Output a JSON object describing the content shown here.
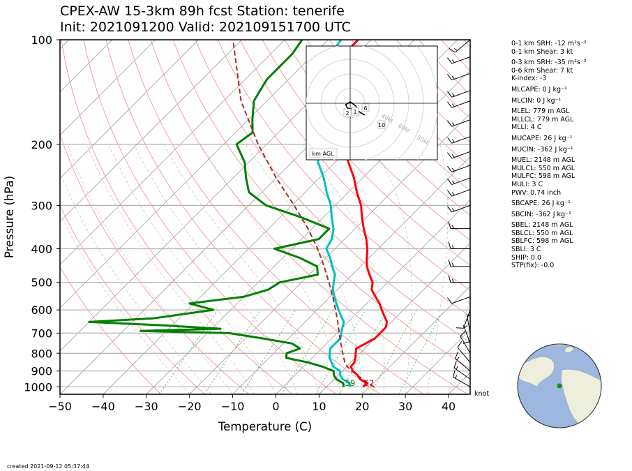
{
  "title_line1": "CPEX-AW 15-3km  89h fcst  Station: tenerife",
  "title_line2": "Init: 2021091200  Valid: 202109151700 UTC",
  "created": "created 2021-09-12 05:37:44",
  "wind_unit": "knot",
  "hodograph_label": "km AGL",
  "indices": [
    "0-1 km SRH: -12 m²s⁻²",
    "0-1 km Shear: 3 kt",
    "0-3 km SRH: -35 m²s⁻²",
    "0-6 km Shear: 7 kt",
    "K-index: -3",
    "MLCAPE: 0 J kg⁻¹",
    "MLCIN: 0 J kg⁻¹",
    "MLEL: 779 m AGL",
    "MLLCL: 779 m AGL",
    "MLLI: 4 C",
    "MUCAPE: 26 J kg⁻¹",
    "MUCIN: -362 J kg⁻¹",
    "MUEL: 2148 m AGL",
    "MULCL: 550 m AGL",
    "MULFC: 598 m AGL",
    "MULI: 3 C",
    "PWV: 0.74 inch",
    "SBCAPE: 26 J kg⁻¹",
    "SBCIN: -362 J kg⁻¹",
    "SBEL: 2148 m AGL",
    "SBLCL: 550 m AGL",
    "SBLFC: 598 m AGL",
    "SBLI: 3 C",
    "SHIP: 0.0",
    "STP(fix): -0.0"
  ],
  "colors": {
    "temperature": "#ff0000",
    "dewpoint": "#008000",
    "wetbulb": "#00c0c0",
    "parcel": "#a52a2a",
    "isobar": "#b0b0b0",
    "isotherm": "#b0b0b0",
    "dry_adiabat": "#f4a0a0",
    "moist_adiabat": "#c8c8c8",
    "mixing_ratio": "#66bb66",
    "ocean": "#9db8e0",
    "land": "#eeeedc"
  },
  "chart_data": {
    "type": "line",
    "subtype": "skew-T log-p",
    "xlabel": "Temperature (C)",
    "ylabel": "Pressure (hPa)",
    "xlim": [
      -50,
      45
    ],
    "ylim": [
      1050,
      100
    ],
    "yscale": "log",
    "xticks": [
      -50,
      -40,
      -30,
      -20,
      -10,
      0,
      10,
      20,
      30,
      40
    ],
    "yticks": [
      100,
      200,
      300,
      400,
      500,
      600,
      700,
      800,
      900,
      1000
    ],
    "surface_labels": {
      "temperature": "67",
      "dewpoint": "59"
    },
    "series": [
      {
        "key": "temperature",
        "points": [
          [
            1000,
            18.5
          ],
          [
            975,
            18.5
          ],
          [
            950,
            16
          ],
          [
            925,
            14.5
          ],
          [
            900,
            12.5
          ],
          [
            875,
            11
          ],
          [
            850,
            10.8
          ],
          [
            825,
            10
          ],
          [
            800,
            9
          ],
          [
            775,
            8
          ],
          [
            750,
            9
          ],
          [
            725,
            10
          ],
          [
            700,
            10
          ],
          [
            675,
            10
          ],
          [
            650,
            9
          ],
          [
            625,
            7
          ],
          [
            600,
            5
          ],
          [
            575,
            3
          ],
          [
            550,
            0.5
          ],
          [
            525,
            -2
          ],
          [
            500,
            -3.5
          ],
          [
            475,
            -6
          ],
          [
            450,
            -8.5
          ],
          [
            425,
            -10.5
          ],
          [
            400,
            -12.5
          ],
          [
            375,
            -15
          ],
          [
            350,
            -18
          ],
          [
            325,
            -21
          ],
          [
            300,
            -24
          ],
          [
            275,
            -28
          ],
          [
            250,
            -32
          ],
          [
            225,
            -37
          ],
          [
            200,
            -42
          ],
          [
            180,
            -47
          ],
          [
            160,
            -52
          ],
          [
            140,
            -56
          ],
          [
            120,
            -61
          ],
          [
            110,
            -63
          ],
          [
            100,
            -63
          ]
        ]
      },
      {
        "key": "dewpoint",
        "points": [
          [
            1000,
            14
          ],
          [
            975,
            13
          ],
          [
            950,
            10.5
          ],
          [
            925,
            9
          ],
          [
            900,
            8
          ],
          [
            875,
            4.5
          ],
          [
            850,
            0
          ],
          [
            825,
            -6
          ],
          [
            800,
            -7
          ],
          [
            775,
            -5
          ],
          [
            750,
            -8
          ],
          [
            725,
            -16
          ],
          [
            700,
            -25
          ],
          [
            690,
            -46
          ],
          [
            680,
            -28
          ],
          [
            665,
            -42
          ],
          [
            650,
            -60
          ],
          [
            635,
            -46
          ],
          [
            600,
            -34
          ],
          [
            575,
            -41
          ],
          [
            550,
            -30
          ],
          [
            525,
            -26
          ],
          [
            500,
            -25
          ],
          [
            475,
            -18
          ],
          [
            450,
            -20
          ],
          [
            425,
            -26
          ],
          [
            400,
            -34
          ],
          [
            375,
            -26
          ],
          [
            350,
            -26
          ],
          [
            325,
            -35
          ],
          [
            300,
            -46
          ],
          [
            275,
            -53
          ],
          [
            250,
            -57
          ],
          [
            225,
            -61
          ],
          [
            200,
            -67
          ],
          [
            185,
            -66
          ],
          [
            170,
            -69
          ],
          [
            150,
            -73
          ],
          [
            130,
            -75
          ],
          [
            110,
            -75
          ],
          [
            100,
            -76
          ]
        ]
      },
      {
        "key": "wetbulb",
        "points": [
          [
            1000,
            15.5
          ],
          [
            975,
            14.5
          ],
          [
            950,
            12
          ],
          [
            925,
            10.5
          ],
          [
            900,
            9.5
          ],
          [
            875,
            7
          ],
          [
            850,
            5.5
          ],
          [
            825,
            4
          ],
          [
            800,
            3
          ],
          [
            775,
            2
          ],
          [
            750,
            2
          ],
          [
            725,
            2
          ],
          [
            700,
            1
          ],
          [
            675,
            0
          ],
          [
            650,
            -1
          ],
          [
            625,
            -3
          ],
          [
            600,
            -5
          ],
          [
            575,
            -7
          ],
          [
            550,
            -9
          ],
          [
            525,
            -11
          ],
          [
            500,
            -12.5
          ],
          [
            475,
            -14
          ],
          [
            450,
            -16.5
          ],
          [
            425,
            -19
          ],
          [
            400,
            -22
          ],
          [
            375,
            -23
          ],
          [
            350,
            -25
          ],
          [
            325,
            -28
          ],
          [
            300,
            -31
          ],
          [
            275,
            -35
          ],
          [
            250,
            -39
          ],
          [
            225,
            -44
          ],
          [
            200,
            -48
          ],
          [
            180,
            -52
          ],
          [
            160,
            -56
          ],
          [
            140,
            -60
          ],
          [
            120,
            -65
          ],
          [
            100,
            -67
          ]
        ]
      },
      {
        "key": "parcel",
        "dashed": true,
        "points": [
          [
            1000,
            21
          ],
          [
            950,
            16.6
          ],
          [
            925,
            14.4
          ],
          [
            900,
            12.2
          ],
          [
            875,
            10.2
          ],
          [
            850,
            8.6
          ],
          [
            825,
            7.3
          ],
          [
            800,
            6
          ],
          [
            775,
            4.7
          ],
          [
            750,
            3.3
          ],
          [
            700,
            0.5
          ],
          [
            650,
            -2.4
          ],
          [
            600,
            -5.7
          ],
          [
            550,
            -9.4
          ],
          [
            500,
            -13.6
          ],
          [
            450,
            -18.4
          ],
          [
            400,
            -24
          ],
          [
            350,
            -30.9
          ],
          [
            300,
            -39.5
          ],
          [
            250,
            -50
          ],
          [
            200,
            -62
          ],
          [
            150,
            -76
          ],
          [
            100,
            -92
          ]
        ]
      }
    ],
    "hodograph": {
      "rings_kt": [
        10,
        20,
        30,
        40,
        50,
        60
      ],
      "ring_labels": [
        "40kt",
        "60kt",
        "50kt"
      ],
      "height_labels": [
        "2",
        "1",
        "6",
        "10"
      ],
      "uv_kt": [
        [
          2,
          -3
        ],
        [
          0,
          -4
        ],
        [
          -2,
          -3
        ],
        [
          -3,
          -1
        ],
        [
          0,
          1
        ],
        [
          4,
          -2
        ],
        [
          5,
          -5
        ],
        [
          8,
          -7
        ],
        [
          10,
          -8
        ]
      ]
    },
    "wind_barbs": [
      {
        "p": 1000,
        "dir": 300,
        "spd": 15
      },
      {
        "p": 950,
        "dir": 305,
        "spd": 15
      },
      {
        "p": 900,
        "dir": 310,
        "spd": 15
      },
      {
        "p": 850,
        "dir": 320,
        "spd": 12
      },
      {
        "p": 800,
        "dir": 330,
        "spd": 10
      },
      {
        "p": 750,
        "dir": 340,
        "spd": 5
      },
      {
        "p": 700,
        "dir": 350,
        "spd": 5
      },
      {
        "p": 650,
        "dir": 180,
        "spd": 10
      },
      {
        "p": 600,
        "dir": 200,
        "spd": 10
      },
      {
        "p": 550,
        "dir": 250,
        "spd": 10
      },
      {
        "p": 500,
        "dir": 270,
        "spd": 15
      },
      {
        "p": 450,
        "dir": 270,
        "spd": 15
      },
      {
        "p": 400,
        "dir": 270,
        "spd": 15
      },
      {
        "p": 350,
        "dir": 270,
        "spd": 15
      },
      {
        "p": 300,
        "dir": 250,
        "spd": 15
      },
      {
        "p": 270,
        "dir": 250,
        "spd": 15
      },
      {
        "p": 250,
        "dir": 250,
        "spd": 15
      },
      {
        "p": 230,
        "dir": 250,
        "spd": 15
      },
      {
        "p": 210,
        "dir": 250,
        "spd": 15
      },
      {
        "p": 190,
        "dir": 250,
        "spd": 15
      },
      {
        "p": 170,
        "dir": 250,
        "spd": 15
      },
      {
        "p": 150,
        "dir": 250,
        "spd": 15
      },
      {
        "p": 140,
        "dir": 250,
        "spd": 15
      },
      {
        "p": 125,
        "dir": 250,
        "spd": 15
      },
      {
        "p": 112,
        "dir": 250,
        "spd": 15
      },
      {
        "p": 100,
        "dir": 230,
        "spd": 15
      }
    ],
    "station_marker": {
      "lat": 28.3,
      "lon": -16.5
    }
  }
}
